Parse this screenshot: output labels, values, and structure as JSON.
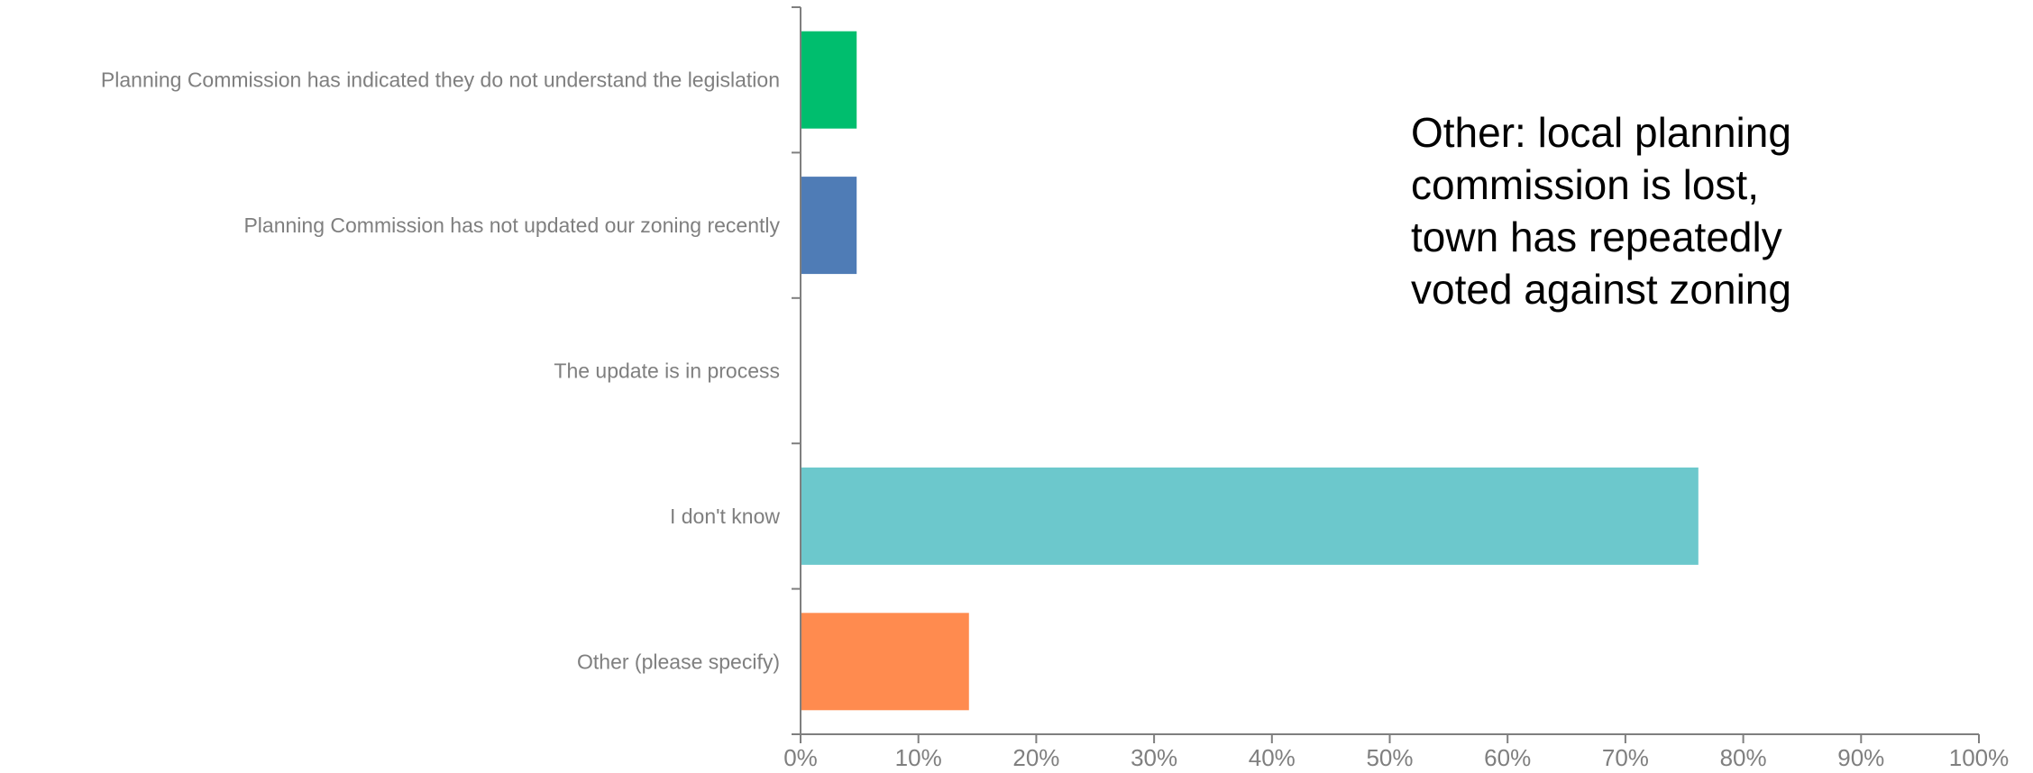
{
  "chart_data": {
    "type": "bar",
    "orientation": "horizontal",
    "categories": [
      "Planning Commission has indicated they do not understand the legislation",
      "Planning Commission has not updated our zoning recently",
      "The update is in process",
      "I don't know",
      "Other (please specify)"
    ],
    "values": [
      4.76,
      4.76,
      0,
      76.19,
      14.29
    ],
    "colors": [
      "#00be6e",
      "#4f7cb6",
      "#a7a7a7",
      "#6cc8cc",
      "#ff8b4f"
    ],
    "xlim": [
      0,
      100
    ],
    "xticks": [
      "0%",
      "10%",
      "20%",
      "30%",
      "40%",
      "50%",
      "60%",
      "70%",
      "80%",
      "90%",
      "100%"
    ],
    "unit": "%",
    "grid": false,
    "annotation": "Other: local planning\ncommission is lost,\ntown has repeatedly\nvoted against zoning"
  }
}
